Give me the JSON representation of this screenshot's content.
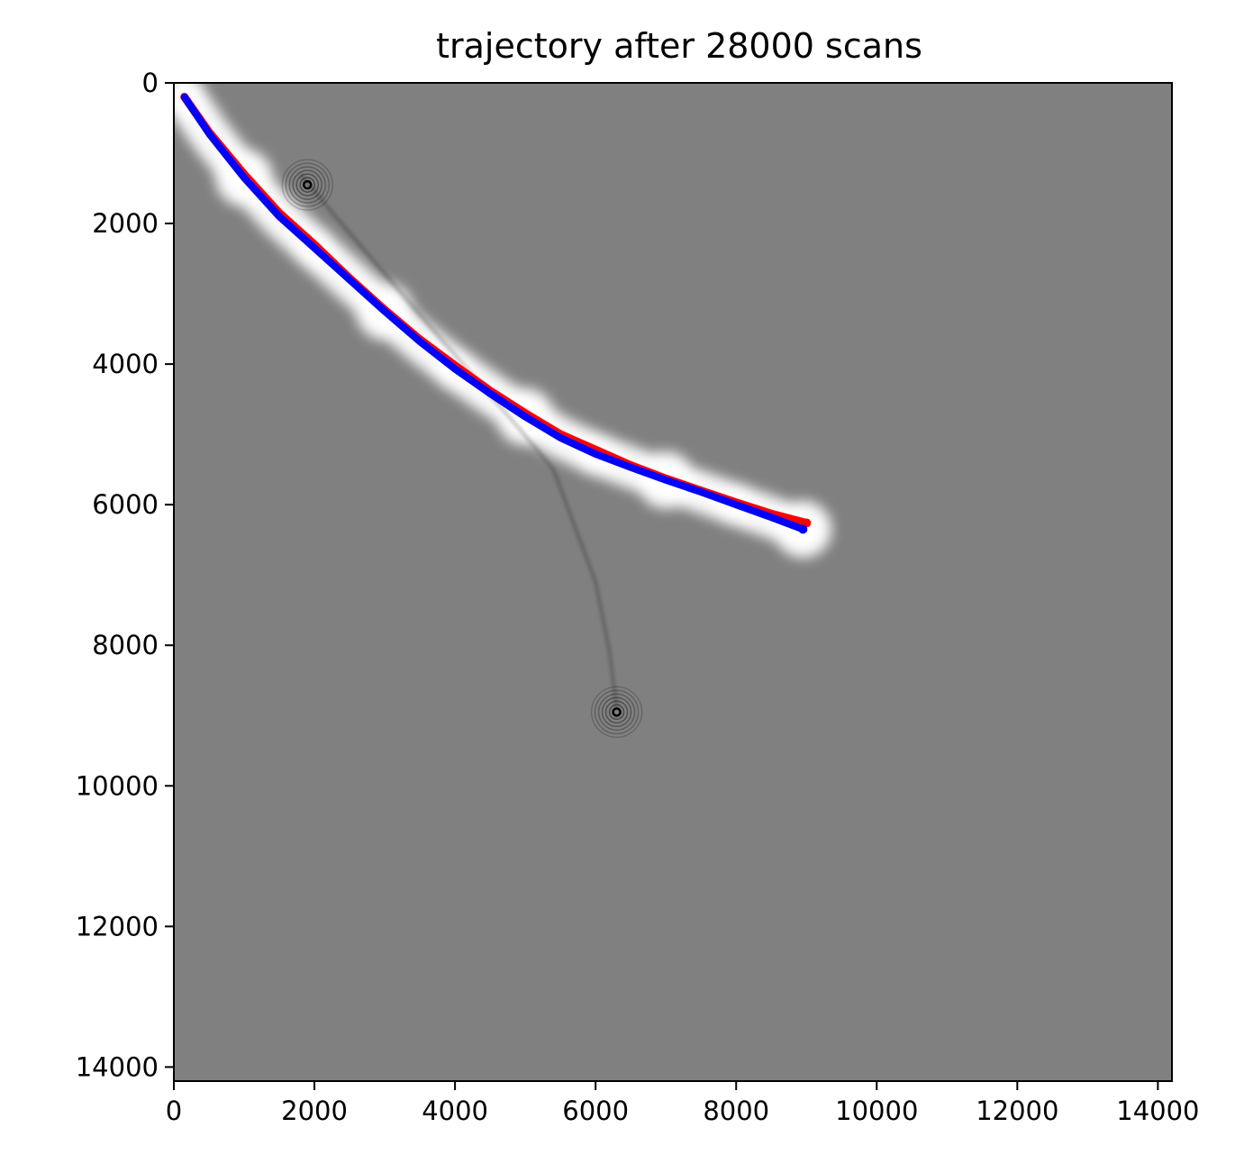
{
  "chart_data": {
    "type": "line",
    "title": "trajectory after 28000 scans",
    "xlabel": "",
    "ylabel": "",
    "xlim": [
      0,
      14200
    ],
    "ylim": [
      14200,
      0
    ],
    "y_inverted": true,
    "grid": false,
    "background_color": "#808080",
    "free_space_color": "#ffffff",
    "obstacle_color": "#000000",
    "x_ticks": [
      {
        "value": 0,
        "label": "0"
      },
      {
        "value": 2000,
        "label": "2000"
      },
      {
        "value": 4000,
        "label": "4000"
      },
      {
        "value": 6000,
        "label": "6000"
      },
      {
        "value": 8000,
        "label": "8000"
      },
      {
        "value": 10000,
        "label": "10000"
      },
      {
        "value": 12000,
        "label": "12000"
      },
      {
        "value": 14000,
        "label": "14000"
      }
    ],
    "y_ticks": [
      {
        "value": 0,
        "label": "0"
      },
      {
        "value": 2000,
        "label": "2000"
      },
      {
        "value": 4000,
        "label": "4000"
      },
      {
        "value": 6000,
        "label": "6000"
      },
      {
        "value": 8000,
        "label": "8000"
      },
      {
        "value": 10000,
        "label": "10000"
      },
      {
        "value": 12000,
        "label": "12000"
      },
      {
        "value": 14000,
        "label": "14000"
      }
    ],
    "series": [
      {
        "color": "#ff0000",
        "x": [
          150,
          500,
          1000,
          1500,
          2000,
          2500,
          3000,
          3500,
          4000,
          4500,
          5000,
          5500,
          6000,
          6500,
          7000,
          7500,
          8000,
          8500,
          9000
        ],
        "y": [
          200,
          700,
          1300,
          1850,
          2300,
          2780,
          3230,
          3650,
          4020,
          4380,
          4700,
          5000,
          5220,
          5440,
          5630,
          5800,
          5970,
          6130,
          6260
        ]
      },
      {
        "color": "#0000ff",
        "x": [
          150,
          500,
          1000,
          1500,
          2000,
          2500,
          3000,
          3500,
          4000,
          4500,
          5000,
          5500,
          6000,
          6500,
          7000,
          7500,
          8000,
          8500,
          8950
        ],
        "y": [
          200,
          720,
          1350,
          1900,
          2350,
          2800,
          3250,
          3680,
          4070,
          4420,
          4750,
          5050,
          5280,
          5470,
          5650,
          5820,
          6000,
          6180,
          6350
        ]
      }
    ],
    "obstacles": [
      {
        "x": 1900,
        "y": 1450,
        "kind": "ring-cluster"
      },
      {
        "x": 6300,
        "y": 8950,
        "kind": "ring-cluster"
      }
    ],
    "obstacle_trace": {
      "x": [
        1800,
        2300,
        2900,
        3500,
        4200,
        4900,
        5400,
        5700,
        6000,
        6200,
        6300
      ],
      "y": [
        1300,
        1900,
        2600,
        3300,
        4100,
        4900,
        5500,
        6300,
        7100,
        8100,
        8900
      ]
    }
  }
}
